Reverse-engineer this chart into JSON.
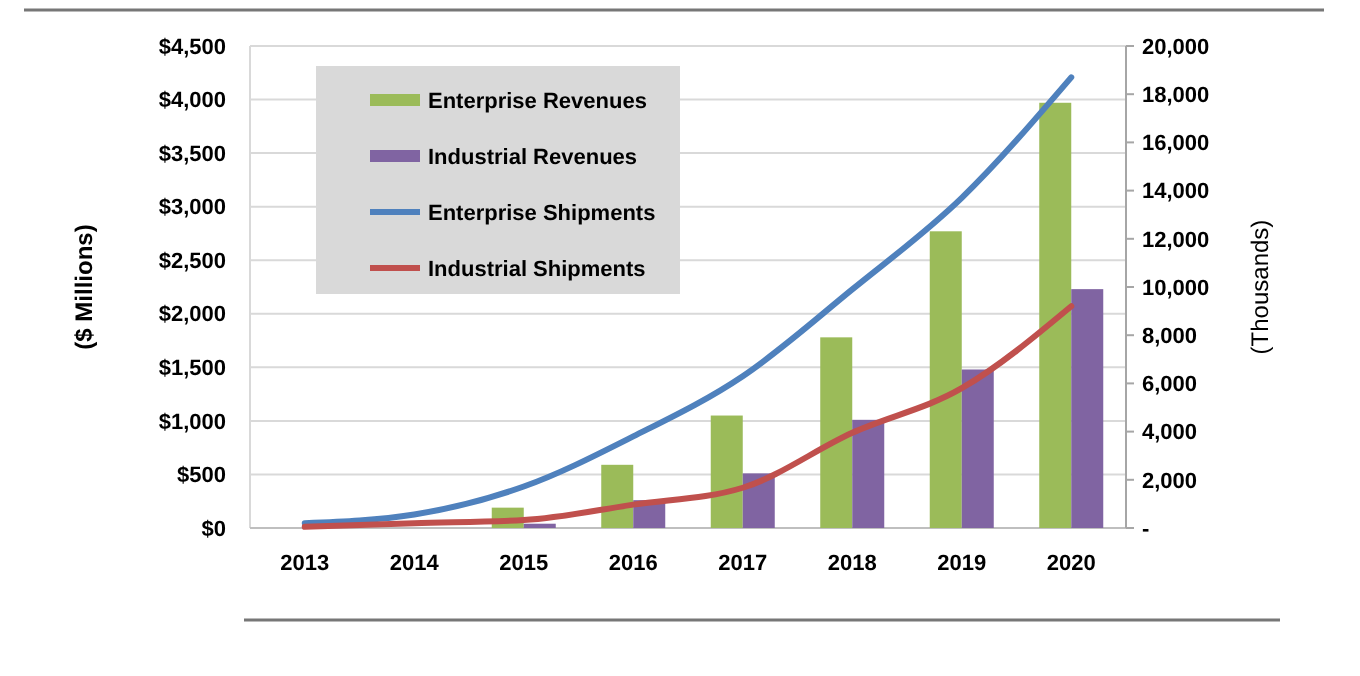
{
  "chart_data": {
    "type": "bar",
    "ylabel": "($ Millions)",
    "y2label": "(Thousands)",
    "categories": [
      "2013",
      "2014",
      "2015",
      "2016",
      "2017",
      "2018",
      "2019",
      "2020"
    ],
    "series": [
      {
        "name": "Enterprise Revenues",
        "color": "#9bbb59",
        "values": [
          0,
          0,
          190,
          590,
          1050,
          1780,
          2770,
          3970
        ]
      },
      {
        "name": "Industrial Revenues",
        "color": "#8064a2",
        "values": [
          0,
          0,
          40,
          260,
          510,
          1010,
          1480,
          2230
        ]
      },
      {
        "name": "Enterprise Shipments",
        "type": "line",
        "axis": "y2",
        "color": "#4f81bd",
        "values": [
          200,
          560,
          1720,
          3800,
          6300,
          9900,
          13700,
          18700
        ]
      },
      {
        "name": "Industrial Shipments",
        "type": "line",
        "axis": "y2",
        "color": "#c0504d",
        "values": [
          50,
          200,
          330,
          970,
          1670,
          3950,
          5800,
          9200
        ]
      }
    ],
    "ylim": [
      0,
      4500
    ],
    "yticks": [
      {
        "value": 0,
        "label": "$0"
      },
      {
        "value": 500,
        "label": "$500"
      },
      {
        "value": 1000,
        "label": "$1,000"
      },
      {
        "value": 1500,
        "label": "$1,500"
      },
      {
        "value": 2000,
        "label": "$2,000"
      },
      {
        "value": 2500,
        "label": "$2,500"
      },
      {
        "value": 3000,
        "label": "$3,000"
      },
      {
        "value": 3500,
        "label": "$3,500"
      },
      {
        "value": 4000,
        "label": "$4,000"
      },
      {
        "value": 4500,
        "label": "$4,500"
      }
    ],
    "y2lim": [
      0,
      20000
    ],
    "y2ticks": [
      {
        "value": 0,
        "label": "-"
      },
      {
        "value": 2000,
        "label": "2,000"
      },
      {
        "value": 4000,
        "label": "4,000"
      },
      {
        "value": 6000,
        "label": "6,000"
      },
      {
        "value": 8000,
        "label": "8,000"
      },
      {
        "value": 10000,
        "label": "10,000"
      },
      {
        "value": 12000,
        "label": "12,000"
      },
      {
        "value": 14000,
        "label": "14,000"
      },
      {
        "value": 16000,
        "label": "16,000"
      },
      {
        "value": 18000,
        "label": "18,000"
      },
      {
        "value": 20000,
        "label": "20,000"
      }
    ],
    "grid": "y",
    "legend": "top left"
  }
}
